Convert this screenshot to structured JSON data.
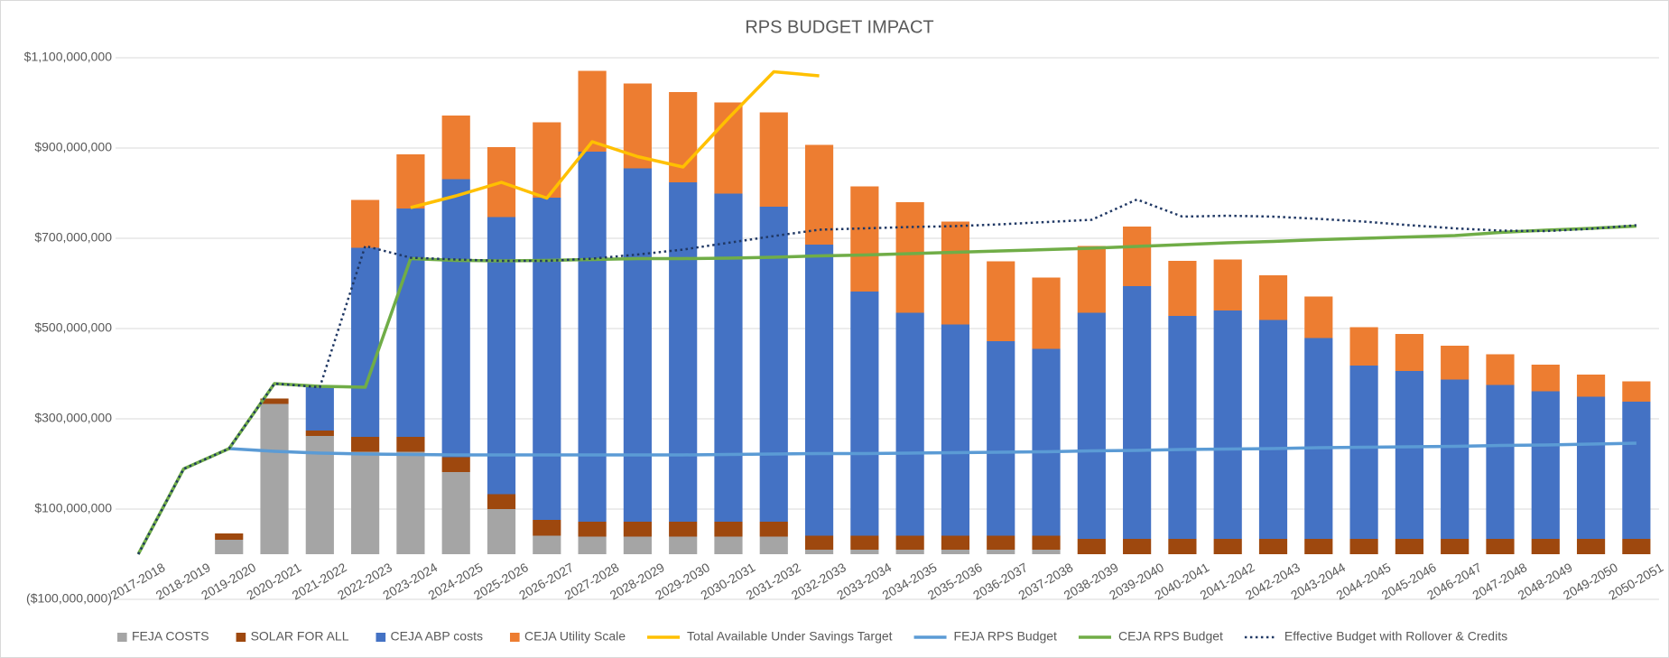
{
  "chart_data": {
    "type": "bar",
    "stacked": true,
    "title": "RPS BUDGET IMPACT",
    "categories": [
      "2017-2018",
      "2018-2019",
      "2019-2020",
      "2020-2021",
      "2021-2022",
      "2022-2023",
      "2023-2024",
      "2024-2025",
      "2025-2026",
      "2026-2027",
      "2027-2028",
      "2028-2029",
      "2029-2030",
      "2030-2031",
      "2031-2032",
      "2032-2033",
      "2033-2034",
      "2034-2035",
      "2035-2036",
      "2036-2037",
      "2037-2038",
      "2038-2039",
      "2039-2040",
      "2040-2041",
      "2041-2042",
      "2042-2043",
      "2043-2044",
      "2044-2045",
      "2045-2046",
      "2046-2047",
      "2047-2048",
      "2048-2049",
      "2049-2050",
      "2050-2051"
    ],
    "ylim": [
      -100000000,
      1100000000
    ],
    "yticks": [
      {
        "value": -100000000,
        "label": "($100,000,000)"
      },
      {
        "value": 100000000,
        "label": "$100,000,000"
      },
      {
        "value": 300000000,
        "label": "$300,000,000"
      },
      {
        "value": 500000000,
        "label": "$500,000,000"
      },
      {
        "value": 700000000,
        "label": "$700,000,000"
      },
      {
        "value": 900000000,
        "label": "$900,000,000"
      },
      {
        "value": 1100000000,
        "label": "$1,100,000,000"
      }
    ],
    "grid": true,
    "legend": "bottom",
    "series": [
      {
        "name": "FEJA COSTS",
        "type": "bar",
        "color": "#a5a5a5",
        "values": [
          null,
          null,
          32000000,
          333000000,
          262000000,
          227000000,
          227000000,
          182000000,
          100000000,
          41000000,
          39000000,
          39000000,
          39000000,
          39000000,
          39000000,
          10000000,
          10000000,
          10000000,
          10000000,
          10000000,
          10000000,
          null,
          null,
          null,
          null,
          null,
          null,
          null,
          null,
          null,
          null,
          null,
          null,
          null
        ]
      },
      {
        "name": "SOLAR FOR ALL",
        "type": "bar",
        "color": "#9e480e",
        "values": [
          null,
          null,
          14000000,
          12000000,
          12000000,
          33000000,
          33000000,
          33000000,
          33000000,
          35000000,
          33000000,
          33000000,
          33000000,
          33000000,
          33000000,
          31000000,
          31000000,
          31000000,
          31000000,
          31000000,
          31000000,
          34000000,
          34000000,
          34000000,
          34000000,
          34000000,
          34000000,
          34000000,
          34000000,
          34000000,
          34000000,
          34000000,
          34000000,
          34000000
        ]
      },
      {
        "name": "CEJA ABP costs",
        "type": "bar",
        "color": "#4472c4",
        "values": [
          null,
          null,
          null,
          null,
          99000000,
          419000000,
          506000000,
          616000000,
          614000000,
          714000000,
          820000000,
          783000000,
          752000000,
          727000000,
          698000000,
          645000000,
          541000000,
          494000000,
          468000000,
          431000000,
          414000000,
          501000000,
          560000000,
          494000000,
          506000000,
          485000000,
          445000000,
          384000000,
          372000000,
          353000000,
          341000000,
          327000000,
          315000000,
          304000000
        ]
      },
      {
        "name": "CEJA Utility Scale",
        "type": "bar",
        "color": "#ed7d31",
        "values": [
          null,
          null,
          null,
          null,
          null,
          106000000,
          120000000,
          141000000,
          155000000,
          167000000,
          179000000,
          188000000,
          200000000,
          202000000,
          209000000,
          221000000,
          233000000,
          245000000,
          228000000,
          177000000,
          158000000,
          148000000,
          132000000,
          122000000,
          113000000,
          99000000,
          92000000,
          85000000,
          82000000,
          75000000,
          68000000,
          59000000,
          49000000,
          45000000
        ]
      },
      {
        "name": "Total Available Under Savings Target",
        "type": "line",
        "color": "#ffc000",
        "values": [
          null,
          null,
          null,
          null,
          null,
          null,
          768000000,
          794000000,
          824000000,
          789000000,
          914000000,
          881000000,
          858000000,
          966000000,
          1069000000,
          1060000000,
          null,
          null,
          null,
          null,
          null,
          null,
          null,
          null,
          null,
          null,
          null,
          null,
          null,
          null,
          null,
          null,
          null,
          null
        ]
      },
      {
        "name": "FEJA RPS Budget",
        "type": "line",
        "color": "#5b9bd5",
        "values": [
          null,
          null,
          234000000,
          228000000,
          224000000,
          222000000,
          221000000,
          220000000,
          220000000,
          220000000,
          220000000,
          220000000,
          220000000,
          221000000,
          222000000,
          223000000,
          223000000,
          224000000,
          225000000,
          226000000,
          227000000,
          229000000,
          230000000,
          232000000,
          233000000,
          234000000,
          236000000,
          237000000,
          238000000,
          239000000,
          241000000,
          242000000,
          244000000,
          246000000
        ]
      },
      {
        "name": "CEJA RPS Budget",
        "type": "line",
        "color": "#70ad47",
        "values": [
          0,
          189000000,
          234000000,
          378000000,
          372000000,
          370000000,
          655000000,
          651000000,
          650000000,
          651000000,
          653000000,
          655000000,
          655000000,
          656000000,
          658000000,
          661000000,
          663000000,
          666000000,
          669000000,
          672000000,
          675000000,
          678000000,
          682000000,
          686000000,
          690000000,
          693000000,
          697000000,
          700000000,
          703000000,
          706000000,
          713000000,
          718000000,
          722000000,
          727000000
        ]
      },
      {
        "name": "Effective Budget with Rollover & Credits",
        "type": "line",
        "line_style": "dotted",
        "color": "#203864",
        "values": [
          0,
          189000000,
          234000000,
          378000000,
          370000000,
          683000000,
          657000000,
          653000000,
          650000000,
          650000000,
          655000000,
          664000000,
          675000000,
          690000000,
          705000000,
          719000000,
          722000000,
          725000000,
          727000000,
          731000000,
          736000000,
          741000000,
          786000000,
          748000000,
          750000000,
          748000000,
          743000000,
          737000000,
          729000000,
          722000000,
          717000000,
          716000000,
          721000000,
          729000000
        ]
      }
    ]
  }
}
